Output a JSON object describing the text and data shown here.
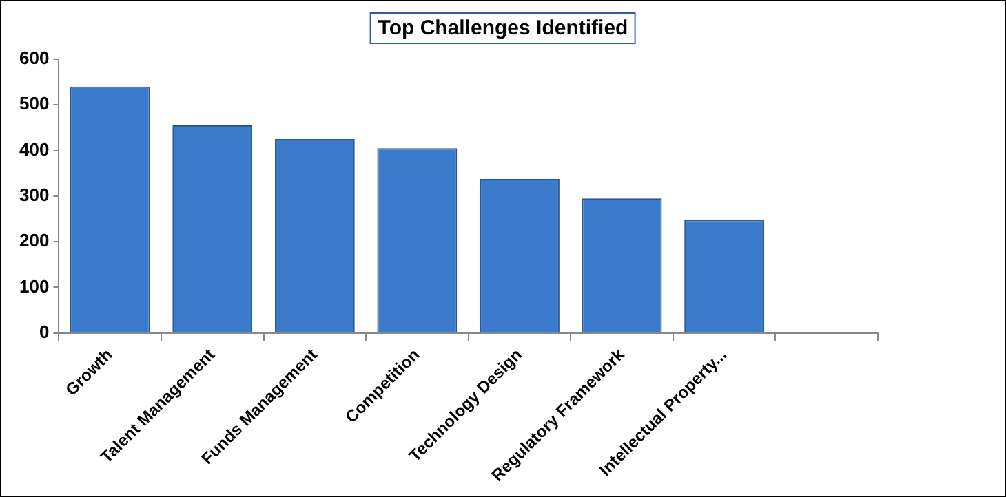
{
  "chart_data": {
    "type": "bar",
    "title": "Top Challenges Identified",
    "categories": [
      "Growth",
      "Talent Management",
      "Funds Management",
      "Competition",
      "Technology Design",
      "Regulatory Framework",
      "Intellectual Property...",
      null
    ],
    "values": [
      540,
      455,
      425,
      405,
      338,
      295,
      248,
      null
    ],
    "color": "#3c7bcb",
    "ylim": [
      0,
      600
    ],
    "yticks": [
      0,
      100,
      200,
      300,
      400,
      500,
      600
    ],
    "grid": false,
    "legend": false
  }
}
